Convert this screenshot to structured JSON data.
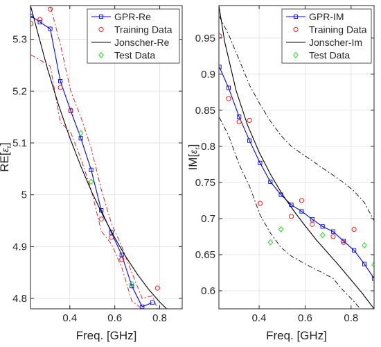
{
  "chart_data": [
    {
      "type": "line",
      "xlabel": "Freq. [GHz]",
      "ylabel": "RE[ε_r]",
      "ylabel_main": "RE[",
      "ylabel_eps": "ε",
      "ylabel_sub": "r",
      "ylabel_close": "]",
      "xlim": [
        0.225,
        0.9
      ],
      "ylim": [
        4.78,
        5.365
      ],
      "xticks": [
        0.4,
        0.6,
        0.8
      ],
      "xtick_labels": [
        "0.4",
        "0.6",
        "0.8"
      ],
      "yticks": [
        4.8,
        4.9,
        5.0,
        5.1,
        5.2,
        5.3
      ],
      "ytick_labels": [
        "4.8",
        "4.9",
        "5",
        "5.1",
        "5.2",
        "5.3"
      ],
      "grid": true,
      "legend_position": "top-right",
      "series": [
        {
          "name": "GPR-Re",
          "kind": "line-marker",
          "marker": "square",
          "color": "#0000ff",
          "x": [
            0.227,
            0.267,
            0.313,
            0.358,
            0.404,
            0.449,
            0.495,
            0.54,
            0.585,
            0.631,
            0.676,
            0.722,
            0.767
          ],
          "y": [
            5.345,
            5.333,
            5.32,
            5.219,
            5.162,
            5.109,
            5.048,
            4.97,
            4.927,
            4.884,
            4.824,
            4.784,
            4.792
          ]
        },
        {
          "name": "GPR-Re upper confidence bound",
          "kind": "dashdot",
          "color": "#e0101a",
          "x": [
            0.227,
            0.267,
            0.313,
            0.358,
            0.404,
            0.449,
            0.495,
            0.54,
            0.585,
            0.631,
            0.676,
            0.722,
            0.767,
            0.79
          ],
          "y": [
            5.365,
            5.365,
            5.365,
            5.29,
            5.2,
            5.15,
            5.09,
            5.01,
            4.945,
            4.9,
            4.85,
            4.8,
            4.805,
            4.78
          ]
        },
        {
          "name": "GPR-Re lower confidence bound",
          "kind": "dashdot",
          "color": "#e0101a",
          "x": [
            0.227,
            0.267,
            0.313,
            0.358,
            0.404,
            0.449,
            0.495,
            0.54,
            0.585,
            0.631,
            0.676,
            0.722
          ],
          "y": [
            5.27,
            5.26,
            5.248,
            5.14,
            5.12,
            5.07,
            5.01,
            4.93,
            4.905,
            4.86,
            4.795,
            4.78
          ]
        },
        {
          "name": "Training Data",
          "kind": "marker",
          "marker": "circle",
          "color": "#ff1a1a",
          "x": [
            0.227,
            0.267,
            0.313,
            0.358,
            0.404,
            0.54,
            0.585,
            0.631,
            0.79
          ],
          "y": [
            5.33,
            5.338,
            5.358,
            5.207,
            5.163,
            4.953,
            4.918,
            4.875,
            4.82
          ]
        },
        {
          "name": "Jonscher-Re",
          "kind": "line",
          "color": "#000000",
          "x": [
            0.225,
            0.3,
            0.35,
            0.4,
            0.45,
            0.5,
            0.55,
            0.6,
            0.65,
            0.7,
            0.75,
            0.8,
            0.85,
            0.9
          ],
          "y": [
            5.365,
            5.244,
            5.173,
            5.11,
            5.054,
            5.003,
            4.958,
            4.917,
            4.88,
            4.847,
            4.818,
            4.793,
            4.772,
            4.755
          ]
        },
        {
          "name": "Test Data",
          "kind": "marker",
          "marker": "diamond",
          "color": "#22dd22",
          "x": [
            0.449,
            0.495,
            0.676
          ],
          "y": [
            5.119,
            5.025,
            4.828
          ]
        }
      ]
    },
    {
      "type": "line",
      "xlabel": "Freq. [GHz]",
      "ylabel": "IM[ε_r]",
      "ylabel_main": "IM[",
      "ylabel_eps": "ε",
      "ylabel_sub": "r",
      "ylabel_close": "]",
      "xlim": [
        0.225,
        0.9
      ],
      "ylim": [
        0.575,
        0.995
      ],
      "xticks": [
        0.4,
        0.6,
        0.8
      ],
      "xtick_labels": [
        "0.4",
        "0.6",
        "0.8"
      ],
      "yticks": [
        0.6,
        0.65,
        0.7,
        0.75,
        0.8,
        0.85,
        0.9,
        0.95
      ],
      "ytick_labels": [
        "0.6",
        "0.65",
        "0.7",
        "0.75",
        "0.8",
        "0.85",
        "0.9",
        "0.95"
      ],
      "grid": true,
      "legend_position": "top-right",
      "series": [
        {
          "name": "GPR-IM",
          "kind": "line-marker",
          "marker": "square",
          "color": "#0000ff",
          "x": [
            0.227,
            0.267,
            0.313,
            0.358,
            0.404,
            0.449,
            0.495,
            0.54,
            0.585,
            0.631,
            0.676,
            0.722,
            0.767,
            0.813,
            0.858,
            0.9
          ],
          "y": [
            0.91,
            0.881,
            0.841,
            0.808,
            0.777,
            0.751,
            0.733,
            0.719,
            0.71,
            0.699,
            0.689,
            0.682,
            0.669,
            0.656,
            0.637,
            0.617
          ]
        },
        {
          "name": "GPR-IM upper confidence bound",
          "kind": "dashdot",
          "color": "#000000",
          "x": [
            0.227,
            0.267,
            0.313,
            0.358,
            0.404,
            0.449,
            0.495,
            0.54,
            0.585,
            0.631,
            0.676,
            0.722,
            0.767,
            0.813,
            0.858,
            0.9
          ],
          "y": [
            0.98,
            0.955,
            0.92,
            0.885,
            0.858,
            0.835,
            0.815,
            0.8,
            0.79,
            0.78,
            0.77,
            0.76,
            0.75,
            0.738,
            0.722,
            0.697
          ]
        },
        {
          "name": "GPR-IM lower confidence bound",
          "kind": "dashdot",
          "color": "#000000",
          "x": [
            0.227,
            0.267,
            0.313,
            0.358,
            0.404,
            0.449,
            0.495,
            0.54,
            0.585,
            0.631,
            0.676,
            0.722,
            0.767,
            0.813,
            0.84
          ],
          "y": [
            0.84,
            0.815,
            0.775,
            0.745,
            0.705,
            0.68,
            0.66,
            0.648,
            0.64,
            0.632,
            0.625,
            0.617,
            0.6,
            0.585,
            0.575
          ]
        },
        {
          "name": "Training Data",
          "kind": "marker",
          "marker": "circle",
          "color": "#ff1a1a",
          "x": [
            0.227,
            0.267,
            0.313,
            0.358,
            0.404,
            0.54,
            0.585,
            0.631,
            0.722,
            0.767,
            0.813
          ],
          "y": [
            0.953,
            0.866,
            0.834,
            0.836,
            0.721,
            0.703,
            0.725,
            0.692,
            0.675,
            0.667,
            0.685
          ]
        },
        {
          "name": "Jonscher-Im",
          "kind": "line",
          "color": "#000000",
          "x": [
            0.225,
            0.25,
            0.3,
            0.35,
            0.4,
            0.45,
            0.5,
            0.55,
            0.6,
            0.65,
            0.7,
            0.75,
            0.8,
            0.85,
            0.9
          ],
          "y": [
            0.995,
            0.945,
            0.877,
            0.829,
            0.792,
            0.761,
            0.734,
            0.711,
            0.69,
            0.67,
            0.652,
            0.634,
            0.615,
            0.596,
            0.575
          ]
        },
        {
          "name": "Test Data",
          "kind": "marker",
          "marker": "diamond",
          "color": "#22dd22",
          "x": [
            0.449,
            0.495,
            0.676,
            0.858,
            0.9
          ],
          "y": [
            0.667,
            0.685,
            0.677,
            0.663,
            0.636
          ]
        }
      ]
    }
  ]
}
